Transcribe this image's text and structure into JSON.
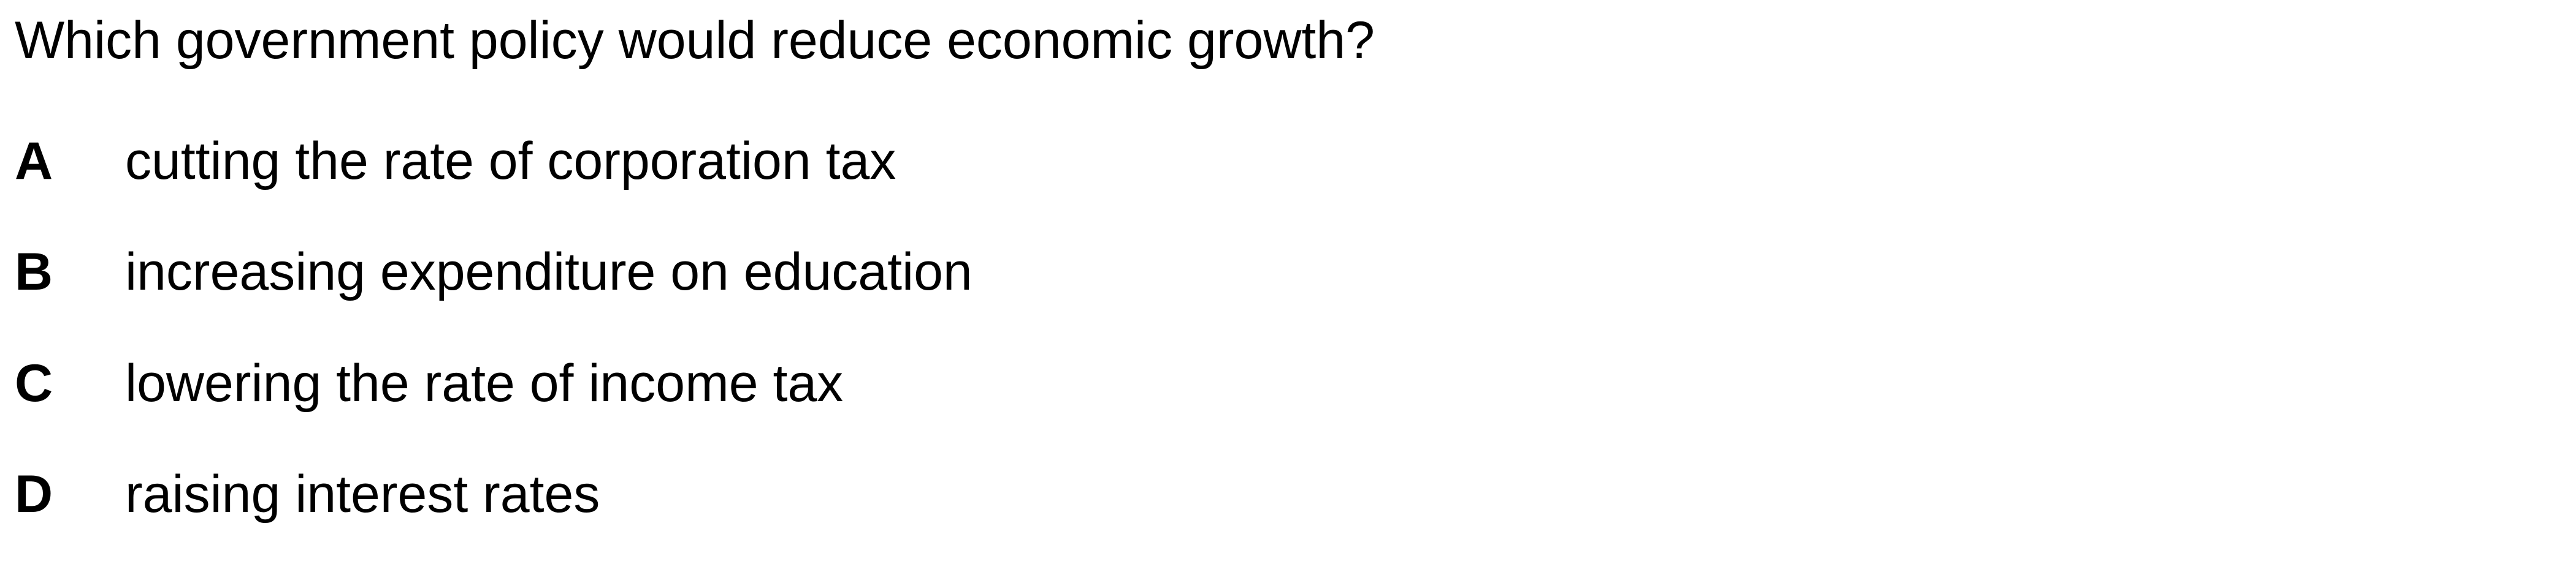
{
  "question": {
    "text": "Which government policy would reduce economic growth?"
  },
  "options": [
    {
      "letter": "A",
      "text": "cutting the rate of corporation tax"
    },
    {
      "letter": "B",
      "text": "increasing expenditure on education"
    },
    {
      "letter": "C",
      "text": "lowering the rate of income tax"
    },
    {
      "letter": "D",
      "text": "raising interest rates"
    }
  ]
}
